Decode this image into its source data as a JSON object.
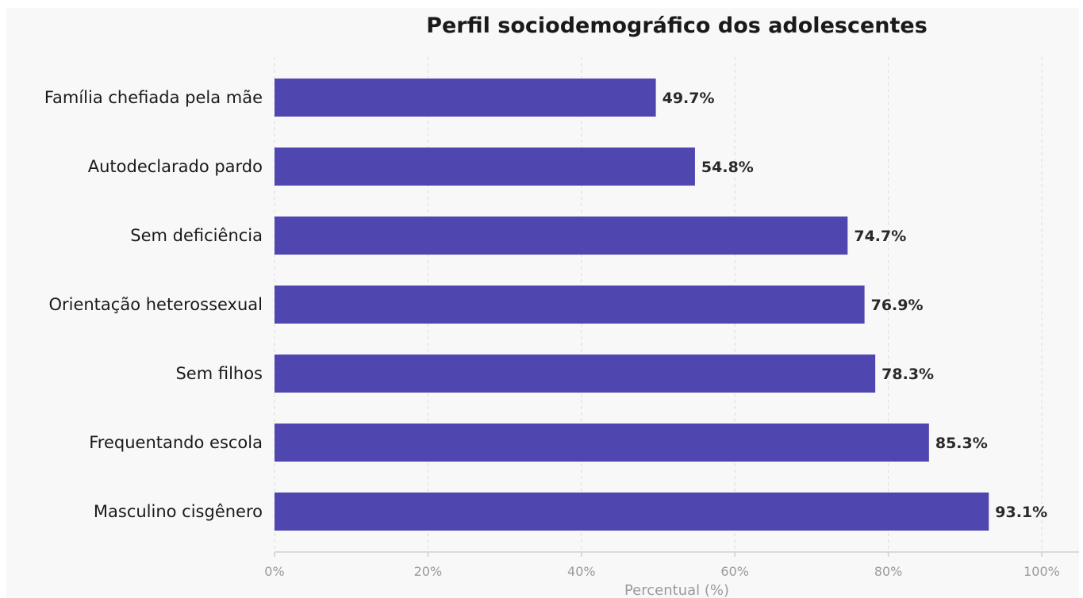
{
  "chart_data": {
    "type": "bar",
    "orientation": "horizontal",
    "title": "Perfil sociodemográfico dos adolescentes",
    "xlabel": "Percentual (%)",
    "ylabel": "",
    "xlim": [
      0,
      100
    ],
    "grid": true,
    "bar_color": "#5046b0",
    "x_ticks": [
      "0%",
      "20%",
      "40%",
      "60%",
      "80%",
      "100%"
    ],
    "categories": [
      "Família chefiada pela mãe",
      "Autodeclarado pardo",
      "Sem deficiência",
      "Orientação heterossexual",
      "Sem filhos",
      "Frequentando escola",
      "Masculino cisgênero"
    ],
    "values": [
      49.7,
      54.8,
      74.7,
      76.9,
      78.3,
      85.3,
      93.1
    ],
    "value_labels": [
      "49.7%",
      "54.8%",
      "74.7%",
      "76.9%",
      "78.3%",
      "85.3%",
      "93.1%"
    ]
  }
}
